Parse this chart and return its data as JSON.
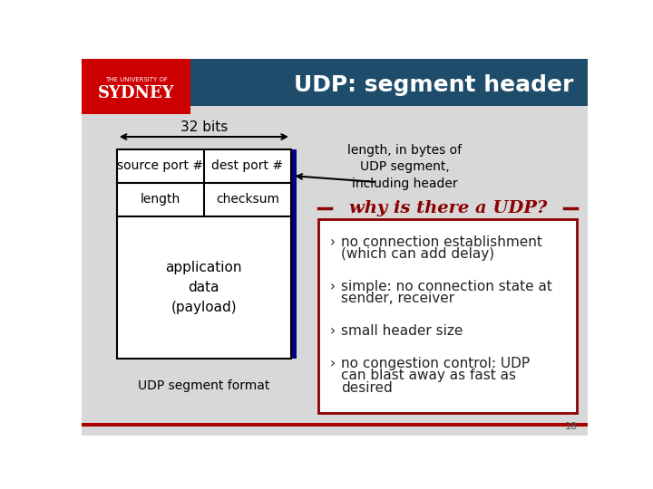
{
  "title": "UDP: segment header",
  "title_color": "#ffffff",
  "header_bg": "#1e4d6b",
  "logo_bg": "#cc0000",
  "slide_bg": "#ffffff",
  "bits_label": "32 bits",
  "left_col1": "source port #",
  "right_col1": "dest port #",
  "left_col2": "length",
  "right_col2": "checksum",
  "payload_text": "application\ndata\n(payload)",
  "footer_label": "UDP segment format",
  "annotation_text": "length, in bytes of\nUDP segment,\nincluding header",
  "why_title": "why is there a UDP?",
  "why_title_color": "#8b0000",
  "bullet_color": "#222222",
  "bullets": [
    "no connection establishment\n(which can add delay)",
    "simple: no connection state at\nsender, receiver",
    "small header size",
    "no congestion control: UDP\ncan blast away as fast as\ndesired"
  ],
  "bullet_marker": "›",
  "page_num": "18",
  "bottom_line_color": "#aa0000",
  "blue_bar_color": "#00008b",
  "table_border_color": "#000000",
  "gray_bg": "#e0e0e0"
}
